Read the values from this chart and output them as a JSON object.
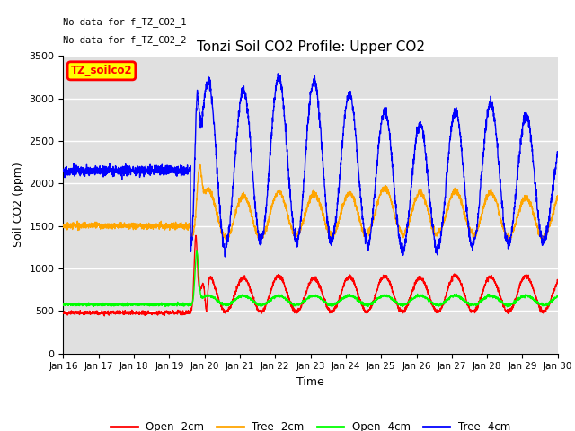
{
  "title": "Tonzi Soil CO2 Profile: Upper CO2",
  "xlabel": "Time",
  "ylabel": "Soil CO2 (ppm)",
  "ylim": [
    0,
    3500
  ],
  "no_data_text_1": "No data for f_TZ_CO2_1",
  "no_data_text_2": "No data for f_TZ_CO2_2",
  "legend_label": "TZ_soilco2",
  "xlim_days": [
    16,
    30
  ],
  "x_ticks": [
    16,
    17,
    18,
    19,
    20,
    21,
    22,
    23,
    24,
    25,
    26,
    27,
    28,
    29,
    30
  ],
  "x_tick_labels": [
    "Jan 16",
    "Jan 17",
    "Jan 18",
    "Jan 19",
    "Jan 20",
    "Jan 21",
    "Jan 22",
    "Jan 23",
    "Jan 24",
    "Jan 25",
    "Jan 26",
    "Jan 27",
    "Jan 28",
    "Jan 29",
    "Jan 30"
  ],
  "series_colors": [
    "red",
    "orange",
    "lime",
    "blue"
  ],
  "series_labels": [
    "Open -2cm",
    "Tree -2cm",
    "Open -4cm",
    "Tree -4cm"
  ],
  "background_color": "#ffffff",
  "plot_bg_color": "#e0e0e0",
  "grid_color": "#ffffff",
  "flat_end_day": 19.6,
  "red_flat": 480,
  "orange_flat": 1500,
  "green_flat": 575,
  "blue_flat": 2150
}
